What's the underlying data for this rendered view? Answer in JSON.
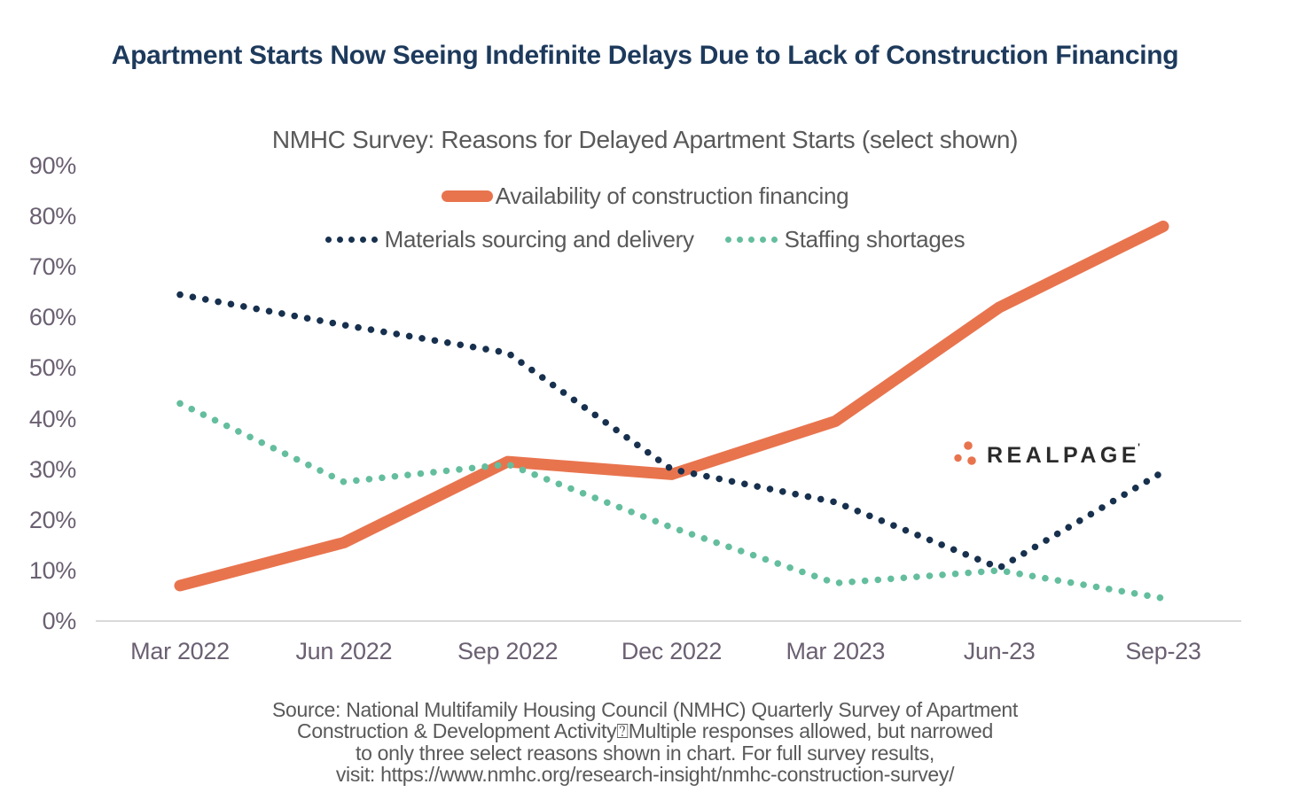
{
  "title": "Apartment Starts Now Seeing Indefinite Delays Due to Lack of Construction Financing",
  "chart_data": {
    "type": "line",
    "title": "NMHC Survey: Reasons for Delayed Apartment Starts (select shown)",
    "categories": [
      "Mar 2022",
      "Jun 2022",
      "Sep 2022",
      "Dec 2022",
      "Mar 2023",
      "Jun-23",
      "Sep-23"
    ],
    "unit": "%",
    "series": [
      {
        "name": "Availability of construction financing",
        "line_style": "solid",
        "color": "#E8744E",
        "values": [
          7,
          15.5,
          31.5,
          29,
          39.5,
          62,
          78
        ]
      },
      {
        "name": "Materials sourcing and delivery",
        "line_style": "dotted",
        "color": "#17304E",
        "values": [
          64.5,
          58.5,
          53,
          30,
          23.5,
          10.5,
          29.5
        ]
      },
      {
        "name": "Staffing shortages",
        "line_style": "dotted",
        "color": "#64BE9E",
        "values": [
          43,
          27.5,
          31,
          18.5,
          7.5,
          10,
          4.5
        ]
      }
    ],
    "y_axis": {
      "ticks": [
        "0%",
        "10%",
        "20%",
        "30%",
        "40%",
        "50%",
        "60%",
        "70%",
        "80%",
        "90%"
      ],
      "min": 0,
      "max": 90
    },
    "x_axis_line_color": "#D9D9D9",
    "tick_label_color": "#6B6072",
    "grid": false,
    "legend_position": "top-center"
  },
  "watermark": {
    "text": "REALPAGE",
    "trademark": "'",
    "dot_color": "#E8744E",
    "text_color": "#2B2B2B"
  },
  "source": {
    "lines": [
      "Source: National Multifamily Housing Council (NMHC) Quarterly Survey of Apartment",
      "Construction & Development Activity⍰Multiple responses allowed, but narrowed",
      "to only three select reasons shown in chart. For full survey results,",
      "visit: https://www.nmhc.org/research-insight/nmhc-construction-survey/"
    ]
  },
  "styles": {
    "title_color": "#1D3A5C",
    "subtitle_color": "#595959",
    "legend_text_color": "#595959",
    "source_color": "#595959"
  }
}
